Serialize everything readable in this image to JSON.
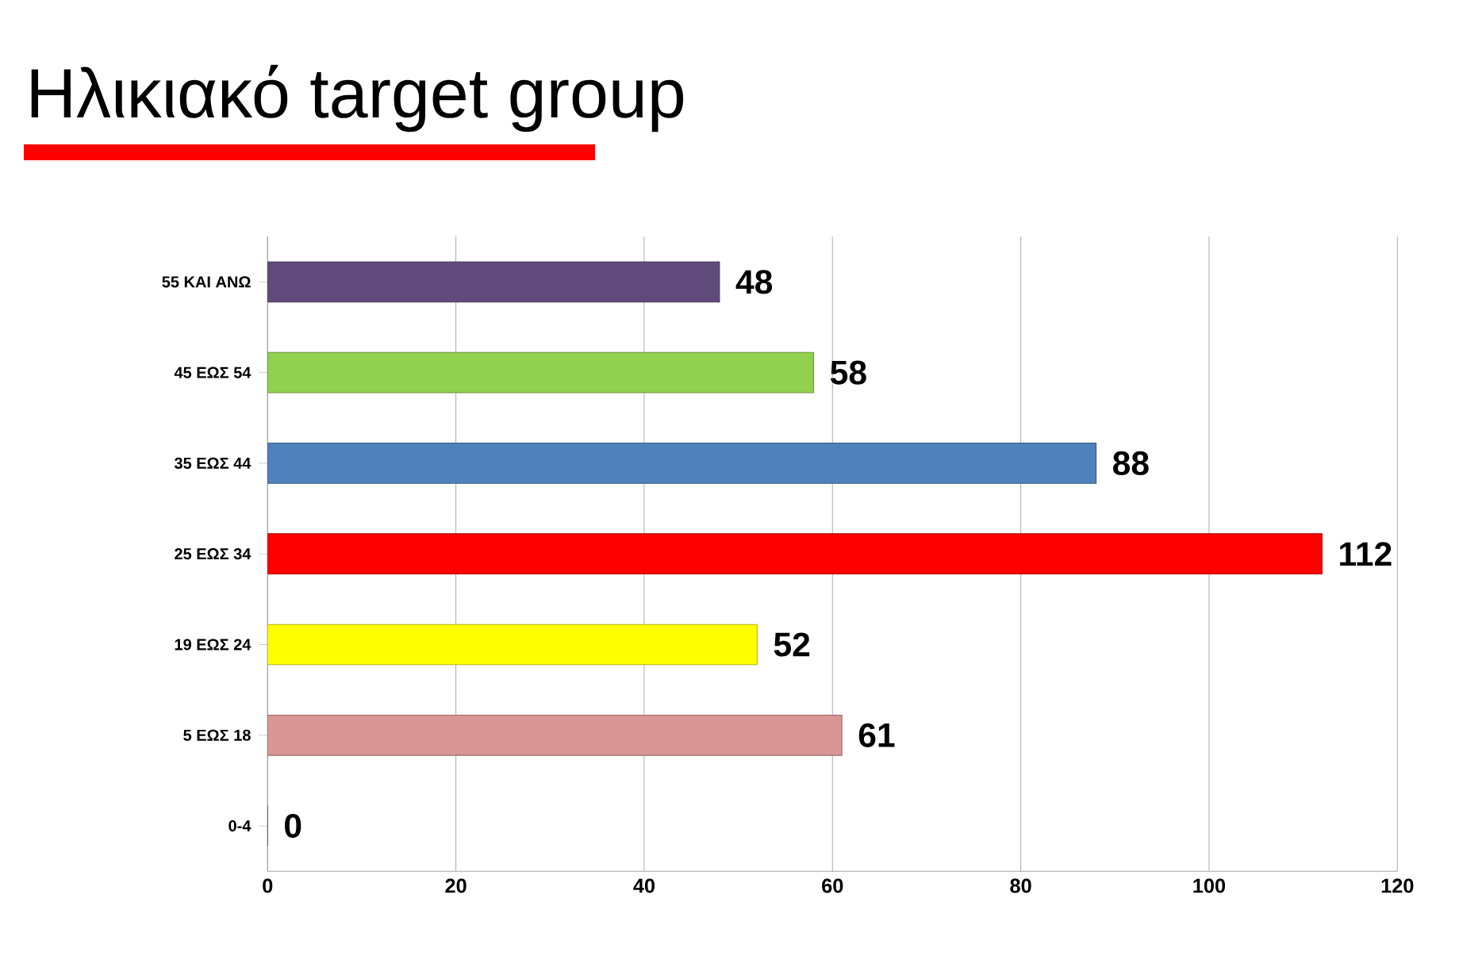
{
  "chart_data": {
    "type": "bar",
    "orientation": "horizontal",
    "title": "Ηλικιακό target group",
    "categories": [
      "55 ΚΑΙ ΑΝΩ",
      "45 ΕΩΣ 54",
      "35 ΕΩΣ 44",
      "25 ΕΩΣ 34",
      "19 ΕΩΣ 24",
      "5 ΕΩΣ 18",
      "0-4"
    ],
    "values": [
      48,
      58,
      88,
      112,
      52,
      61,
      0
    ],
    "colors": [
      "#604a7b",
      "#92d050",
      "#4f81bd",
      "#ff0000",
      "#ffff00",
      "#d99694",
      "#1f497d"
    ],
    "xlim": [
      0,
      120
    ],
    "xticks": [
      0,
      20,
      40,
      60,
      80,
      100,
      120
    ],
    "grid": "x",
    "data_labels": true
  }
}
